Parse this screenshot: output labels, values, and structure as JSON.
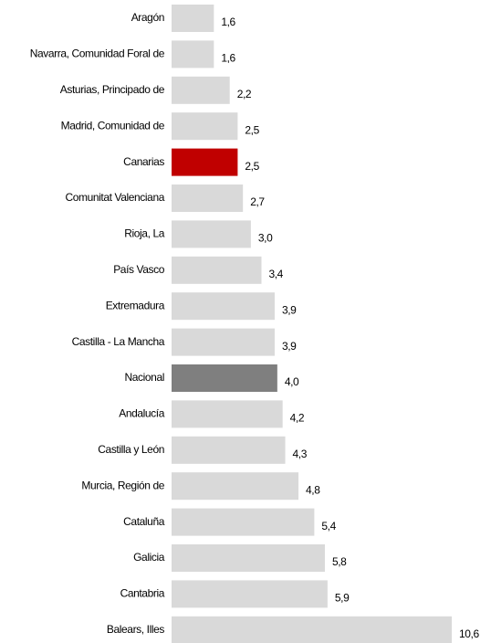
{
  "chart_data": {
    "type": "bar",
    "orientation": "horizontal",
    "categories": [
      "Aragón",
      "Navarra, Comunidad Foral de",
      "Asturias, Principado de",
      "Madrid, Comunidad de",
      "Canarias",
      "Comunitat Valenciana",
      "Rioja, La",
      "País Vasco",
      "Extremadura",
      "Castilla - La Mancha",
      "Nacional",
      "Andalucía",
      "Castilla y León",
      "Murcia, Región de",
      "Cataluña",
      "Galicia",
      "Cantabria",
      "Balears, Illes"
    ],
    "values": [
      1.6,
      1.6,
      2.2,
      2.5,
      2.5,
      2.7,
      3.0,
      3.4,
      3.9,
      3.9,
      4.0,
      4.2,
      4.3,
      4.8,
      5.4,
      5.8,
      5.9,
      10.6
    ],
    "value_labels": [
      "1,6",
      "1,6",
      "2,2",
      "2,5",
      "2,5",
      "2,7",
      "3,0",
      "3,4",
      "3,9",
      "3,9",
      "4,0",
      "4,2",
      "4,3",
      "4,8",
      "5,4",
      "5,8",
      "5,9",
      "10,6"
    ],
    "colors": [
      "#d9d9d9",
      "#d9d9d9",
      "#d9d9d9",
      "#d9d9d9",
      "#c00000",
      "#d9d9d9",
      "#d9d9d9",
      "#d9d9d9",
      "#d9d9d9",
      "#d9d9d9",
      "#7f7f7f",
      "#d9d9d9",
      "#d9d9d9",
      "#d9d9d9",
      "#d9d9d9",
      "#d9d9d9",
      "#d9d9d9",
      "#d9d9d9"
    ]
  }
}
